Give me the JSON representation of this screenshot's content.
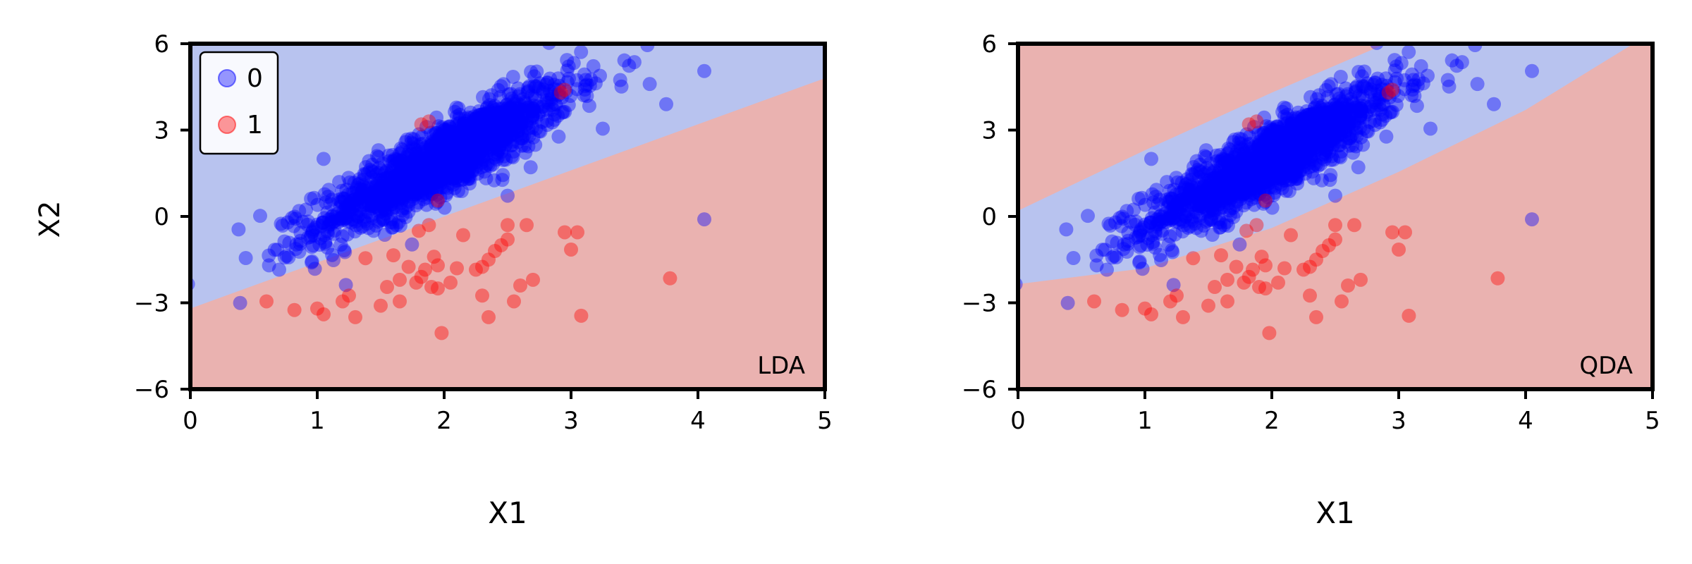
{
  "figure": {
    "ylabel": "X2"
  },
  "colors": {
    "class0_point": "#0000ff",
    "class1_point": "#ff0000",
    "region0": "#b8c3ef",
    "region1": "#eab2b0",
    "axes": "#000000"
  },
  "legend": {
    "placement": "top-left",
    "entries": [
      {
        "label": "0",
        "color": "#0000ff"
      },
      {
        "label": "1",
        "color": "#ff0000"
      }
    ]
  },
  "chart_data": [
    {
      "type": "scatter",
      "title": "",
      "panel_label": "LDA",
      "xlabel": "X1",
      "ylabel": "X2",
      "xlim": [
        0,
        5
      ],
      "ylim": [
        -6,
        6
      ],
      "xticks": [
        "0",
        "1",
        "2",
        "3",
        "4",
        "5"
      ],
      "yticks": [
        "−6",
        "−3",
        "0",
        "3",
        "6"
      ],
      "grid": false,
      "legend": true,
      "boundary": {
        "kind": "linear",
        "line": [
          [
            0,
            -3.2
          ],
          [
            5,
            4.8
          ]
        ],
        "region_above": "0",
        "region_below": "1"
      },
      "series": [
        {
          "name": "0",
          "color": "#0000ff",
          "cluster": {
            "count": 1400,
            "mean": [
              2.0,
              2.0
            ],
            "sd_x": 0.5,
            "slope": 2.3,
            "sd_resid": 0.62
          },
          "outliers": [
            [
              0.38,
              -0.45
            ],
            [
              0.55,
              0.02
            ],
            [
              0.7,
              -1.85
            ],
            [
              3.42,
              5.42
            ],
            [
              3.75,
              3.9
            ],
            [
              4.05,
              5.05
            ],
            [
              3.62,
              4.6
            ],
            [
              3.25,
              3.05
            ],
            [
              4.05,
              -0.1
            ],
            [
              0.62,
              -1.7
            ],
            [
              2.5,
              0.72
            ],
            [
              1.05,
              2.0
            ]
          ]
        },
        {
          "name": "1",
          "color": "#ff0000",
          "points": [
            [
              0.6,
              -2.95
            ],
            [
              0.82,
              -3.25
            ],
            [
              1.0,
              -3.2
            ],
            [
              1.05,
              -3.4
            ],
            [
              1.2,
              -2.95
            ],
            [
              1.3,
              -3.5
            ],
            [
              1.25,
              -2.75
            ],
            [
              1.38,
              -1.45
            ],
            [
              1.5,
              -3.1
            ],
            [
              1.55,
              -2.45
            ],
            [
              1.6,
              -1.35
            ],
            [
              1.65,
              -2.95
            ],
            [
              1.65,
              -2.2
            ],
            [
              1.72,
              -1.75
            ],
            [
              1.78,
              -2.3
            ],
            [
              1.82,
              -2.1
            ],
            [
              1.85,
              -1.85
            ],
            [
              1.9,
              -2.45
            ],
            [
              1.92,
              -1.4
            ],
            [
              1.95,
              -1.7
            ],
            [
              1.95,
              -2.5
            ],
            [
              1.98,
              -4.05
            ],
            [
              2.05,
              -2.3
            ],
            [
              2.1,
              -1.8
            ],
            [
              2.15,
              -0.65
            ],
            [
              2.25,
              -1.85
            ],
            [
              2.3,
              -1.75
            ],
            [
              2.3,
              -2.75
            ],
            [
              2.35,
              -1.5
            ],
            [
              2.35,
              -3.5
            ],
            [
              2.4,
              -1.2
            ],
            [
              2.45,
              -1.0
            ],
            [
              2.5,
              -0.3
            ],
            [
              2.55,
              -2.95
            ],
            [
              2.6,
              -2.4
            ],
            [
              2.65,
              -0.3
            ],
            [
              2.7,
              -2.2
            ],
            [
              2.95,
              -0.55
            ],
            [
              3.0,
              -1.15
            ],
            [
              3.05,
              -0.55
            ],
            [
              3.08,
              -3.45
            ],
            [
              3.78,
              -2.15
            ],
            [
              1.95,
              0.55
            ],
            [
              1.88,
              -0.3
            ],
            [
              1.8,
              -0.5
            ],
            [
              2.5,
              -0.8
            ],
            [
              2.92,
              4.3
            ],
            [
              2.95,
              4.4
            ],
            [
              1.82,
              3.2
            ],
            [
              1.88,
              3.3
            ]
          ]
        }
      ]
    },
    {
      "type": "scatter",
      "title": "",
      "panel_label": "QDA",
      "xlabel": "X1",
      "ylabel": "",
      "xlim": [
        0,
        5
      ],
      "ylim": [
        -6,
        6
      ],
      "xticks": [
        "0",
        "1",
        "2",
        "3",
        "4",
        "5"
      ],
      "yticks": [
        "−6",
        "−3",
        "0",
        "3",
        "6"
      ],
      "grid": false,
      "legend": false,
      "boundary": {
        "kind": "quadratic-band",
        "upper": [
          [
            0,
            0.2
          ],
          [
            1,
            2.3
          ],
          [
            2,
            4.3
          ],
          [
            2.9,
            6.0
          ]
        ],
        "lower": [
          [
            0,
            -2.35
          ],
          [
            1,
            -1.8
          ],
          [
            2,
            -0.4
          ],
          [
            3,
            1.55
          ],
          [
            4,
            3.7
          ],
          [
            4.85,
            6.0
          ]
        ],
        "region_inside": "0",
        "region_outside": "1"
      },
      "series": [
        {
          "name": "0",
          "color": "#0000ff",
          "cluster": {
            "count": 1400,
            "mean": [
              2.0,
              2.0
            ],
            "sd_x": 0.5,
            "slope": 2.3,
            "sd_resid": 0.62
          },
          "outliers": [
            [
              0.38,
              -0.45
            ],
            [
              0.55,
              0.02
            ],
            [
              0.7,
              -1.85
            ],
            [
              3.42,
              5.42
            ],
            [
              3.75,
              3.9
            ],
            [
              4.05,
              5.05
            ],
            [
              3.62,
              4.6
            ],
            [
              3.25,
              3.05
            ],
            [
              4.05,
              -0.1
            ],
            [
              0.62,
              -1.7
            ],
            [
              2.5,
              0.72
            ],
            [
              1.05,
              2.0
            ]
          ]
        },
        {
          "name": "1",
          "color": "#ff0000",
          "points": [
            [
              0.6,
              -2.95
            ],
            [
              0.82,
              -3.25
            ],
            [
              1.0,
              -3.2
            ],
            [
              1.05,
              -3.4
            ],
            [
              1.2,
              -2.95
            ],
            [
              1.3,
              -3.5
            ],
            [
              1.25,
              -2.75
            ],
            [
              1.38,
              -1.45
            ],
            [
              1.5,
              -3.1
            ],
            [
              1.55,
              -2.45
            ],
            [
              1.6,
              -1.35
            ],
            [
              1.65,
              -2.95
            ],
            [
              1.65,
              -2.2
            ],
            [
              1.72,
              -1.75
            ],
            [
              1.78,
              -2.3
            ],
            [
              1.82,
              -2.1
            ],
            [
              1.85,
              -1.85
            ],
            [
              1.9,
              -2.45
            ],
            [
              1.92,
              -1.4
            ],
            [
              1.95,
              -1.7
            ],
            [
              1.95,
              -2.5
            ],
            [
              1.98,
              -4.05
            ],
            [
              2.05,
              -2.3
            ],
            [
              2.1,
              -1.8
            ],
            [
              2.15,
              -0.65
            ],
            [
              2.25,
              -1.85
            ],
            [
              2.3,
              -1.75
            ],
            [
              2.3,
              -2.75
            ],
            [
              2.35,
              -1.5
            ],
            [
              2.35,
              -3.5
            ],
            [
              2.4,
              -1.2
            ],
            [
              2.45,
              -1.0
            ],
            [
              2.5,
              -0.3
            ],
            [
              2.55,
              -2.95
            ],
            [
              2.6,
              -2.4
            ],
            [
              2.65,
              -0.3
            ],
            [
              2.7,
              -2.2
            ],
            [
              2.95,
              -0.55
            ],
            [
              3.0,
              -1.15
            ],
            [
              3.05,
              -0.55
            ],
            [
              3.08,
              -3.45
            ],
            [
              3.78,
              -2.15
            ],
            [
              1.95,
              0.55
            ],
            [
              1.88,
              -0.3
            ],
            [
              1.8,
              -0.5
            ],
            [
              2.5,
              -0.8
            ],
            [
              2.92,
              4.3
            ],
            [
              2.95,
              4.4
            ],
            [
              1.82,
              3.2
            ],
            [
              1.88,
              3.3
            ]
          ]
        }
      ]
    }
  ]
}
